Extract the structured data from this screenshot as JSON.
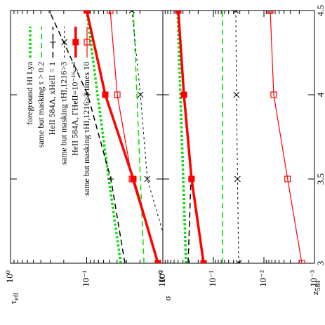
{
  "chart_data": [
    {
      "type": "line",
      "log_y": true,
      "ylabel": "τ",
      "ylabel_sub": "eff",
      "xlabel": "z",
      "xlabel_sub": "584",
      "x": [
        3,
        3.5,
        4,
        4.5
      ],
      "xlim": [
        3,
        4.5
      ],
      "xticks": [
        3,
        3.5,
        4,
        4.5
      ],
      "ylim": [
        0.01,
        1
      ],
      "yticks": [
        {
          "value": 1,
          "label": "10⁰"
        },
        {
          "value": 0.1,
          "label": "10⁻¹"
        },
        {
          "value": 0.01,
          "label": "10⁻²"
        }
      ],
      "series": [
        {
          "name": "foreground HI Lya",
          "color": "#00dd00",
          "dash": "dot",
          "width": 3.5,
          "marker": "none",
          "values": [
            0.0357,
            0.0513,
            0.072,
            0.1
          ]
        },
        {
          "name": "same but masking τ > 0.2",
          "color": "#00dd00",
          "dash": "dash",
          "width": 1.5,
          "marker": "none",
          "values": [
            0.0177,
            0.0197,
            0.0219,
            0.0244
          ]
        },
        {
          "name": "HeII 584A, xHeII = 1",
          "color": "#000000",
          "dash": "dash",
          "width": 1.5,
          "marker": "plus",
          "values": [
            0.0315,
            0.0481,
            0.0969,
            0.311
          ]
        },
        {
          "name": "same but masking τHI,1216>3",
          "color": "#000000",
          "dash": "fine",
          "width": 1,
          "marker": "cross",
          "values": [
            0.0076,
            0.016,
            0.0197,
            0.0255
          ]
        },
        {
          "name": "HeII 584A, ΓHeII=10⁻¹⁶s⁻¹",
          "color": "#ff0000",
          "dash": "solid",
          "width": 3.5,
          "marker": "filled-square",
          "values": [
            0.0116,
            0.0244,
            0.057,
            0.1
          ]
        },
        {
          "name": "same but masking τHI,1216>3 times 10",
          "color": "#ff0000",
          "dash": "solid",
          "width": 1.2,
          "marker": "square",
          "values": [
            0.0116,
            0.0254,
            0.0397,
            0.0491
          ]
        }
      ]
    },
    {
      "type": "line",
      "log_y": true,
      "ylabel": "σ",
      "x": [
        3,
        3.5,
        4,
        4.5
      ],
      "xlim": [
        3,
        4.5
      ],
      "xticks": [
        3,
        3.5,
        4,
        4.5
      ],
      "ylim": [
        0.001,
        1
      ],
      "yticks": [
        {
          "value": 1,
          "label": "10⁰"
        },
        {
          "value": 0.1,
          "label": "10⁻¹"
        },
        {
          "value": 0.01,
          "label": "10⁻²"
        },
        {
          "value": 0.001,
          "label": "10⁻³"
        }
      ],
      "series": [
        {
          "color": "#00dd00",
          "dash": "dot",
          "width": 3.5,
          "marker": "none",
          "values": [
            0.348,
            0.395,
            0.45,
            0.511
          ]
        },
        {
          "color": "#00dd00",
          "dash": "dash",
          "width": 1.5,
          "marker": "none",
          "values": [
            0.066,
            0.066,
            0.066,
            0.066
          ]
        },
        {
          "color": "#000000",
          "dash": "dash",
          "width": 1.5,
          "marker": "plus",
          "values": [
            0.316,
            0.278,
            0.371,
            0.511
          ]
        },
        {
          "color": "#000000",
          "dash": "fine",
          "width": 1,
          "marker": "cross",
          "values": [
            0.0316,
            0.0333,
            0.035,
            0.036
          ]
        },
        {
          "color": "#ff0000",
          "dash": "solid",
          "width": 3.5,
          "marker": "filled-square",
          "values": [
            0.156,
            0.27,
            0.383,
            0.495
          ]
        },
        {
          "color": "#ff0000",
          "dash": "solid",
          "width": 1.2,
          "marker": "square",
          "values": [
            0.00178,
            0.0034,
            0.0064,
            0.0075
          ]
        }
      ]
    }
  ]
}
